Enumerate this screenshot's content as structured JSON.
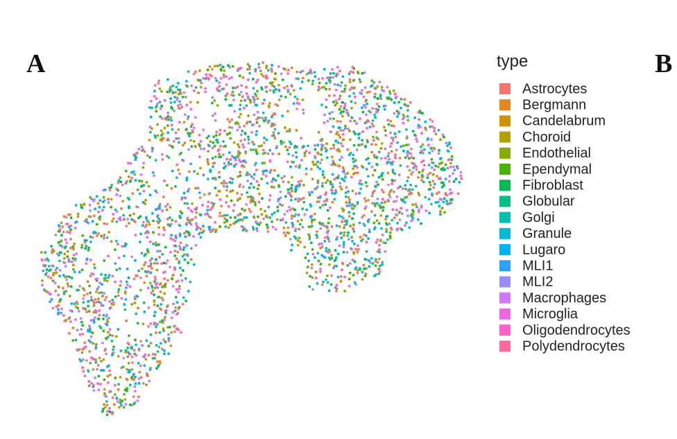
{
  "panels": [
    {
      "label": "A"
    },
    {
      "label": "B"
    }
  ],
  "legend": {
    "title": "type",
    "items": [
      {
        "label": "Astrocytes",
        "color": "#F8766D"
      },
      {
        "label": "Bergmann",
        "color": "#E7851E"
      },
      {
        "label": "Candelabrum",
        "color": "#D09400"
      },
      {
        "label": "Choroid",
        "color": "#B2A100"
      },
      {
        "label": "Endothelial",
        "color": "#89AC00"
      },
      {
        "label": "Ependymal",
        "color": "#45B500"
      },
      {
        "label": "Fibroblast",
        "color": "#00BC51"
      },
      {
        "label": "Globular",
        "color": "#00C087"
      },
      {
        "label": "Golgi",
        "color": "#00C0B2"
      },
      {
        "label": "Granule",
        "color": "#00BCD6"
      },
      {
        "label": "Lugaro",
        "color": "#00B3F2"
      },
      {
        "label": "MLI1",
        "color": "#29A3FF"
      },
      {
        "label": "MLI2",
        "color": "#9C8DFF"
      },
      {
        "label": "Macrophages",
        "color": "#D277FF"
      },
      {
        "label": "Microglia",
        "color": "#F166E8"
      },
      {
        "label": "Oligodendrocytes",
        "color": "#FF61C7"
      },
      {
        "label": "Polydendrocytes",
        "color": "#FF689E"
      }
    ]
  }
}
